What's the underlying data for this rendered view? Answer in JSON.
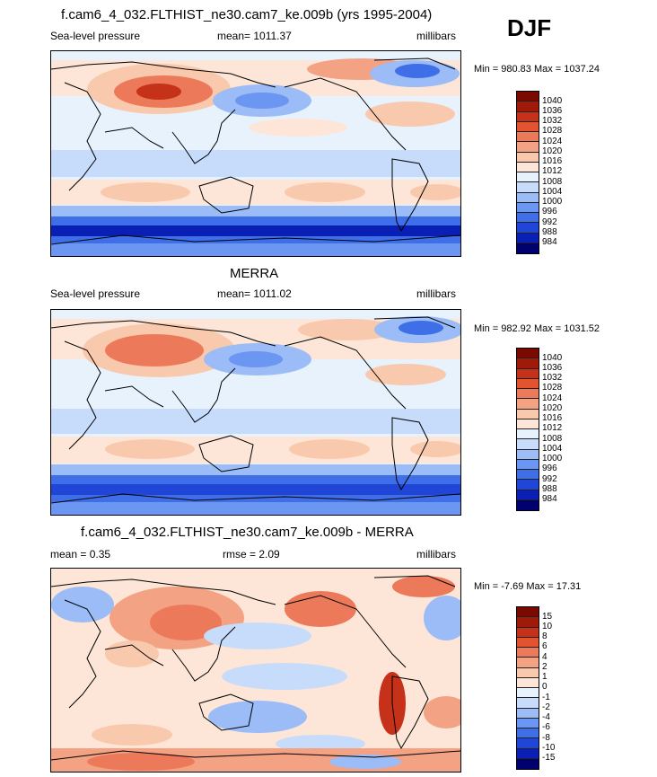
{
  "season": "DJF",
  "colors": {
    "scale": [
      "#00006e",
      "#0a1fb3",
      "#1f46d6",
      "#3f6fe8",
      "#6b96f2",
      "#9bbcf6",
      "#c7dcfa",
      "#e8f2fd",
      "#fde6d8",
      "#f9c9ad",
      "#f3a283",
      "#ec7a5a",
      "#e2532f",
      "#c6311a",
      "#a01a0a",
      "#7a0a00"
    ]
  },
  "panels": [
    {
      "title": "f.cam6_4_032.FLTHIST_ne30.cam7_ke.009b (yrs 1995-2004)",
      "left_label": "Sea-level pressure",
      "center_label": "mean= 1011.37",
      "right_label": "millibars",
      "minmax": "Min = 980.83 Max = 1037.24",
      "colorbar_labels": [
        "1040",
        "1036",
        "1032",
        "1028",
        "1024",
        "1020",
        "1016",
        "1012",
        "1008",
        "1004",
        "1000",
        "996",
        "992",
        "988",
        "984"
      ]
    },
    {
      "title": "MERRA",
      "left_label": "Sea-level pressure",
      "center_label": "mean= 1011.02",
      "right_label": "millibars",
      "minmax": "Min = 982.92 Max = 1031.52",
      "colorbar_labels": [
        "1040",
        "1036",
        "1032",
        "1028",
        "1024",
        "1020",
        "1016",
        "1012",
        "1008",
        "1004",
        "1000",
        "996",
        "992",
        "988",
        "984"
      ]
    },
    {
      "title": "f.cam6_4_032.FLTHIST_ne30.cam7_ke.009b - MERRA",
      "left_label": "mean =   0.35",
      "center_label": "rmse =   2.09",
      "right_label": "millibars",
      "minmax": "Min =  -7.69 Max =  17.31",
      "colorbar_labels": [
        "15",
        "10",
        "8",
        "6",
        "4",
        "2",
        "1",
        "0",
        "-1",
        "-2",
        "-4",
        "-6",
        "-8",
        "-10",
        "-15"
      ]
    }
  ]
}
